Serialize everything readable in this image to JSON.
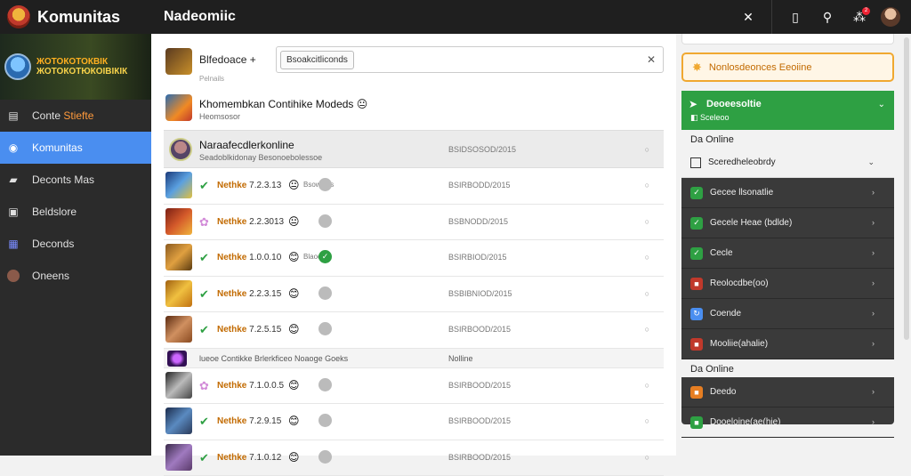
{
  "app": {
    "title": "Komunitas"
  },
  "banner": {
    "line1": "ЖОТОКОТОКВІК",
    "line2": "ЖОТОКОТЮКОІВІКІК"
  },
  "sidebar": {
    "items": [
      {
        "label": "Conte",
        "accent": "Stiefte",
        "icon": "inbox-icon"
      },
      {
        "label": "Komunitas",
        "icon": "globe-icon"
      },
      {
        "label": "Deconts Mas",
        "icon": "car-icon"
      },
      {
        "label": "Beldslore",
        "icon": "square-icon"
      },
      {
        "label": "Deconds",
        "icon": "grid-icon"
      },
      {
        "label": "Oneens",
        "icon": "avatar-icon"
      }
    ]
  },
  "header": {
    "title": "Nadeomiic",
    "badge": "2"
  },
  "composer": {
    "name": "Blfedoace +",
    "sub": "Pelnails",
    "pill": "Bsoakcitliconds"
  },
  "post": {
    "title": "Khomembkan Contihike Modeds",
    "sub": "Heomsosor"
  },
  "list_head": {
    "title": "Naraafecdlerkonline",
    "sub": "Seadoblkidonay Besonoebolessoe",
    "date": "BSIDSOSOD/2015"
  },
  "rows": [
    {
      "name": "Nethke",
      "num": "7.2.3.13",
      "extra": "Bsowoios",
      "date": "BSIRBODD/2015",
      "status": "check",
      "emoji": "😐",
      "chip": "",
      "av": "linear-gradient(135deg,#1b3a7a,#5aa0e0 50%,#e0c040)"
    },
    {
      "name": "Nethke",
      "num": "2.2.3013",
      "extra": "",
      "date": "BSBNODD/2015",
      "status": "star",
      "emoji": "😐",
      "chip": "",
      "av": "linear-gradient(135deg,#7a1f14,#d45a2a 50%,#f0b43c)"
    },
    {
      "name": "Nethke",
      "num": "1.0.0.10",
      "extra": "Blaooo",
      "date": "BSIRBIOD/2015",
      "status": "check",
      "emoji": "😊",
      "chip": "✓",
      "av": "linear-gradient(135deg,#8a5a20,#e0a040 50%,#5a3a10)"
    },
    {
      "name": "Nethke",
      "num": "2.2.3.15",
      "extra": "",
      "date": "BSBIBNIOD/2015",
      "status": "check",
      "emoji": "😊",
      "chip": "",
      "av": "linear-gradient(135deg,#a06010,#f0c040 50%,#c07010)"
    },
    {
      "name": "Nethke",
      "num": "7.2.5.15",
      "extra": "",
      "date": "BSIRBOOD/2015",
      "status": "check",
      "emoji": "😊",
      "chip": "",
      "av": "linear-gradient(135deg,#5a2a10,#d09060 50%,#8a4a20)"
    }
  ],
  "divider": {
    "text": "lueoe Contikke Brlerkficeo Noaoge Goeks",
    "online": "Nolline"
  },
  "rows2": [
    {
      "name": "Nethke",
      "num": "7.1.0.0.5",
      "extra": "",
      "date": "BSIRBOOD/2015",
      "status": "star",
      "emoji": "😊",
      "chip": "",
      "av": "linear-gradient(135deg,#222,#bbb 50%,#444)"
    },
    {
      "name": "Nethke",
      "num": "7.2.9.15",
      "extra": "",
      "date": "BSIRBOOD/2015",
      "status": "check",
      "emoji": "😊",
      "chip": "",
      "av": "linear-gradient(135deg,#1a2a4a,#5a8ac0 50%,#2a3a5a)"
    },
    {
      "name": "Nethke",
      "num": "7.1.0.12",
      "extra": "",
      "date": "BSIRBOOD/2015",
      "status": "check",
      "emoji": "😊",
      "chip": "",
      "av": "linear-gradient(135deg,#3a2a4a,#a07ac0 50%,#5a3a6a)"
    }
  ],
  "right": {
    "alert": "Nonlosdeonces Eeoiine",
    "panel_title": "Deoeesoltie",
    "panel_sub": "Sceleoo",
    "section1": "Da Online",
    "sub1": "Sceredheleobrdy",
    "items": [
      {
        "label": "Gecee llsonatlie",
        "color": "#2ea043",
        "glyph": "✓"
      },
      {
        "label": "Gecele Heae (bdlde)",
        "color": "#2ea043",
        "glyph": "✓"
      },
      {
        "label": "Cecle",
        "color": "#2ea043",
        "glyph": "✓"
      },
      {
        "label": "Reolocdbe(oo)",
        "color": "#c0392b",
        "glyph": "■"
      },
      {
        "label": "Coende",
        "color": "#4a8ef0",
        "glyph": "↻"
      },
      {
        "label": "Mooliie(ahalie)",
        "color": "#c0392b",
        "glyph": "■"
      }
    ],
    "section2": "Da Online",
    "items2": [
      {
        "label": "Deedo",
        "color": "#e67e22",
        "glyph": "■"
      },
      {
        "label": "Dooeloine(ae(hie)",
        "color": "#2ea043",
        "glyph": "■"
      }
    ]
  }
}
